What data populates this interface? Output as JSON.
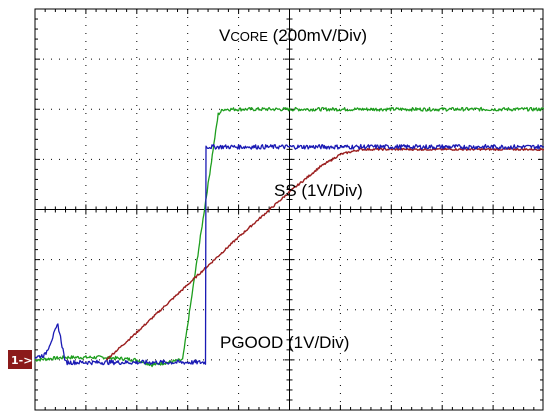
{
  "chart_data": {
    "type": "line",
    "title": "",
    "xlabel": "",
    "ylabel": "",
    "grid": true,
    "grid_divisions": {
      "x": 10,
      "y": 8
    },
    "x_unit": "div",
    "y_unit": "div",
    "xlim": [
      0,
      10
    ],
    "ylim": [
      0,
      8
    ],
    "ground_marker": {
      "label": "1->",
      "color": "#8b1a1a"
    },
    "annotations": {
      "vcore_prefix": "V",
      "vcore_sub": "CORE",
      "vcore_scale": " (200mV/Div)",
      "ss": "SS  (1V/Div)",
      "pgood": "PGOOD (1V/Div)"
    },
    "series": [
      {
        "key": "vcore",
        "color": "#1e9e1e",
        "x": [
          0.0,
          0.6,
          1.4,
          2.0,
          2.3,
          2.9,
          3.6,
          3.7,
          4.0,
          10.0
        ],
        "y": [
          1.0,
          1.05,
          1.05,
          1.0,
          0.9,
          1.0,
          5.9,
          6.0,
          6.0,
          6.0
        ]
      },
      {
        "key": "ss",
        "color": "#9b1e1e",
        "x": [
          1.4,
          2.0,
          3.0,
          4.0,
          5.0,
          5.6,
          6.0,
          6.4,
          7.0,
          10.0
        ],
        "y": [
          1.0,
          1.55,
          2.5,
          3.45,
          4.35,
          4.85,
          5.1,
          5.2,
          5.2,
          5.2
        ]
      },
      {
        "key": "pgood",
        "color": "#1a1ab4",
        "x": [
          0.0,
          0.2,
          0.45,
          0.6,
          1.0,
          2.5,
          3.35,
          3.36,
          4.0,
          10.0
        ],
        "y": [
          1.05,
          1.1,
          1.7,
          0.95,
          0.95,
          0.95,
          0.95,
          5.25,
          5.25,
          5.25
        ]
      }
    ]
  }
}
